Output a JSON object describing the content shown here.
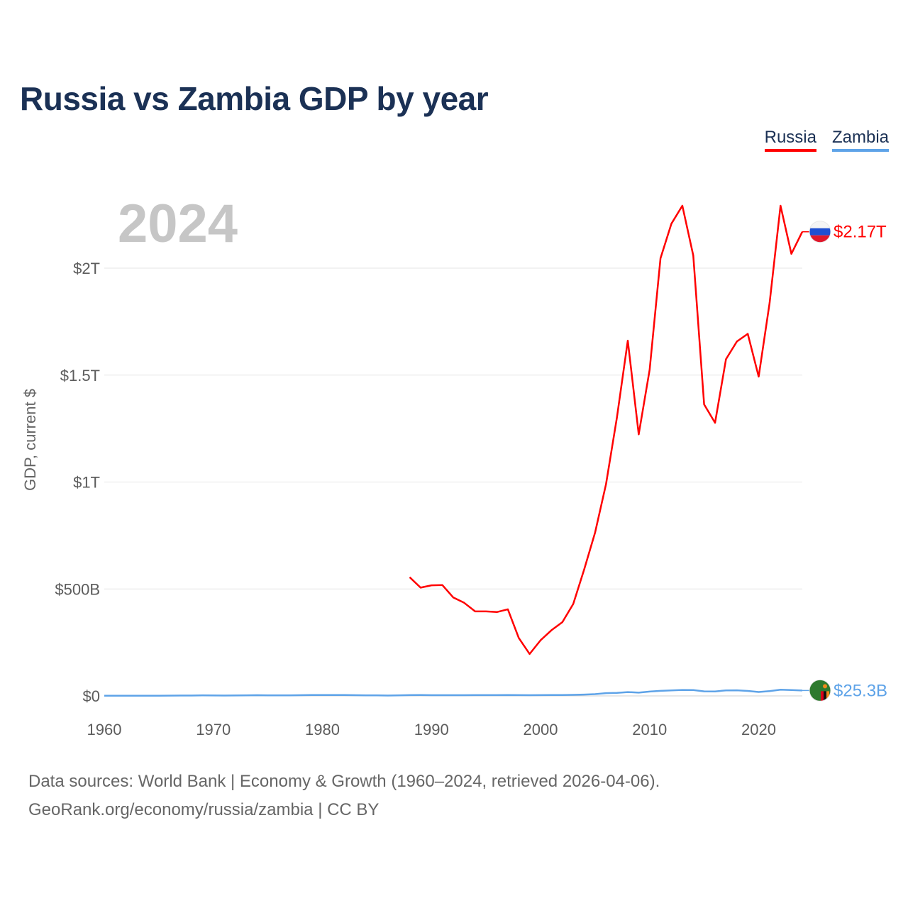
{
  "title": "Russia vs Zambia GDP by year",
  "year_watermark": "2024",
  "legend": [
    {
      "name": "Russia",
      "color": "#ff0000"
    },
    {
      "name": "Zambia",
      "color": "#5ea3e8"
    }
  ],
  "footer": {
    "line1": "Data sources: World Bank | Economy & Growth (1960–2024, retrieved 2026-04-06).",
    "line2": "GeoRank.org/economy/russia/zambia | CC BY"
  },
  "chart_data": {
    "type": "line",
    "title": "Russia vs Zambia GDP by year",
    "xlabel": "",
    "ylabel": "GDP, current $",
    "xlim": [
      1960,
      2024
    ],
    "ylim": [
      0,
      2300
    ],
    "y_unit": "billions of current US$",
    "x_ticks": [
      1960,
      1970,
      1980,
      1990,
      2000,
      2010,
      2020
    ],
    "y_ticks": [
      {
        "value": 0,
        "label": "$0"
      },
      {
        "value": 500,
        "label": "$500B"
      },
      {
        "value": 1000,
        "label": "$1T"
      },
      {
        "value": 1500,
        "label": "$1.5T"
      },
      {
        "value": 2000,
        "label": "$2T"
      }
    ],
    "grid": true,
    "legend_position": "top-right",
    "series": [
      {
        "name": "Russia",
        "color": "#ff0000",
        "end_label": "$2.17T",
        "flag": "russia-flag-icon",
        "points": [
          [
            1988,
            555
          ],
          [
            1989,
            506
          ],
          [
            1990,
            517
          ],
          [
            1991,
            518
          ],
          [
            1992,
            460
          ],
          [
            1993,
            435
          ],
          [
            1994,
            395
          ],
          [
            1995,
            395
          ],
          [
            1996,
            392
          ],
          [
            1997,
            405
          ],
          [
            1998,
            271
          ],
          [
            1999,
            196
          ],
          [
            2000,
            260
          ],
          [
            2001,
            307
          ],
          [
            2002,
            345
          ],
          [
            2003,
            430
          ],
          [
            2004,
            591
          ],
          [
            2005,
            764
          ],
          [
            2006,
            990
          ],
          [
            2007,
            1300
          ],
          [
            2008,
            1661
          ],
          [
            2009,
            1223
          ],
          [
            2010,
            1525
          ],
          [
            2011,
            2046
          ],
          [
            2012,
            2208
          ],
          [
            2013,
            2292
          ],
          [
            2014,
            2059
          ],
          [
            2015,
            1363
          ],
          [
            2016,
            1277
          ],
          [
            2017,
            1574
          ],
          [
            2018,
            1657
          ],
          [
            2019,
            1693
          ],
          [
            2020,
            1493
          ],
          [
            2021,
            1837
          ],
          [
            2022,
            2292
          ],
          [
            2023,
            2067
          ],
          [
            2024,
            2170
          ]
        ]
      },
      {
        "name": "Zambia",
        "color": "#5ea3e8",
        "end_label": "$25.3B",
        "flag": "zambia-flag-icon",
        "points": [
          [
            1960,
            0.7
          ],
          [
            1961,
            0.7
          ],
          [
            1962,
            0.7
          ],
          [
            1963,
            0.7
          ],
          [
            1964,
            0.9
          ],
          [
            1965,
            1.1
          ],
          [
            1966,
            1.3
          ],
          [
            1967,
            1.5
          ],
          [
            1968,
            1.8
          ],
          [
            1969,
            2.3
          ],
          [
            1970,
            1.9
          ],
          [
            1971,
            1.8
          ],
          [
            1972,
            2.1
          ],
          [
            1973,
            2.5
          ],
          [
            1974,
            3.3
          ],
          [
            1975,
            2.6
          ],
          [
            1976,
            2.8
          ],
          [
            1977,
            2.8
          ],
          [
            1978,
            3.2
          ],
          [
            1979,
            3.9
          ],
          [
            1980,
            4.0
          ],
          [
            1981,
            4.1
          ],
          [
            1982,
            3.9
          ],
          [
            1983,
            3.3
          ],
          [
            1984,
            2.7
          ],
          [
            1985,
            2.3
          ],
          [
            1986,
            1.7
          ],
          [
            1987,
            2.3
          ],
          [
            1988,
            3.7
          ],
          [
            1989,
            4.0
          ],
          [
            1990,
            3.3
          ],
          [
            1991,
            3.4
          ],
          [
            1992,
            3.2
          ],
          [
            1993,
            3.3
          ],
          [
            1994,
            3.7
          ],
          [
            1995,
            3.8
          ],
          [
            1996,
            3.6
          ],
          [
            1997,
            4.3
          ],
          [
            1998,
            3.5
          ],
          [
            1999,
            3.4
          ],
          [
            2000,
            3.6
          ],
          [
            2001,
            4.1
          ],
          [
            2002,
            4.2
          ],
          [
            2003,
            4.9
          ],
          [
            2004,
            6.2
          ],
          [
            2005,
            8.3
          ],
          [
            2006,
            12.8
          ],
          [
            2007,
            14.1
          ],
          [
            2008,
            17.9
          ],
          [
            2009,
            15.3
          ],
          [
            2010,
            20.3
          ],
          [
            2011,
            23.5
          ],
          [
            2012,
            25.5
          ],
          [
            2013,
            28.0
          ],
          [
            2014,
            27.2
          ],
          [
            2015,
            21.2
          ],
          [
            2016,
            20.9
          ],
          [
            2017,
            25.9
          ],
          [
            2018,
            26.3
          ],
          [
            2019,
            23.3
          ],
          [
            2020,
            18.1
          ],
          [
            2021,
            22.1
          ],
          [
            2022,
            29.2
          ],
          [
            2023,
            27.6
          ],
          [
            2024,
            25.3
          ]
        ]
      }
    ]
  }
}
